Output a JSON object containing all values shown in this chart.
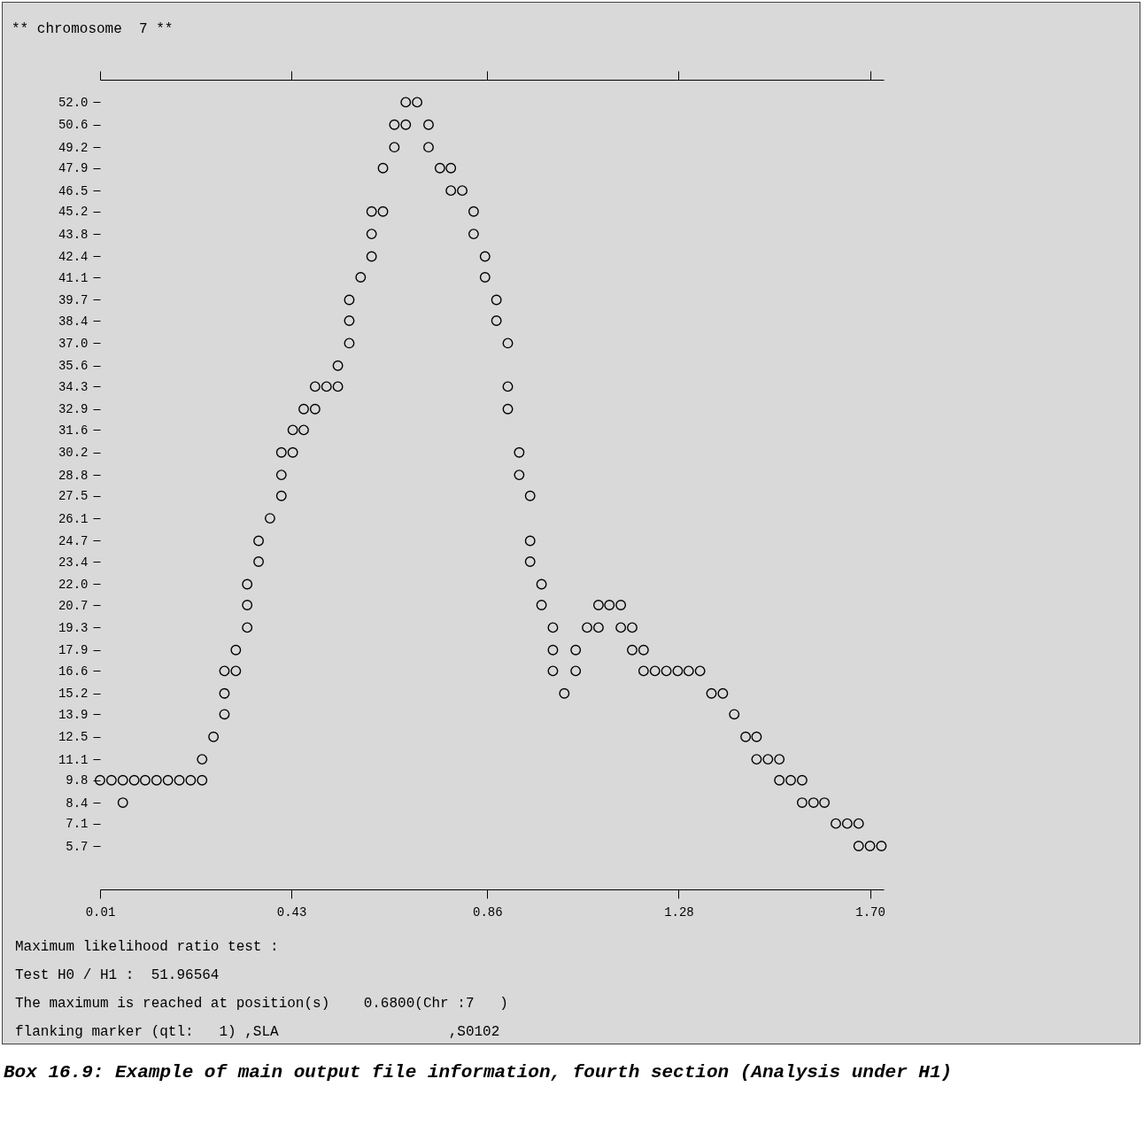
{
  "chart_data": {
    "type": "scatter",
    "title": "** chromosome  7 **",
    "x": [
      0.681,
      0.706,
      0.656,
      0.681,
      0.731,
      0.656,
      0.731,
      0.631,
      0.756,
      0.78,
      0.78,
      0.805,
      0.606,
      0.631,
      0.83,
      0.606,
      0.83,
      0.606,
      0.855,
      0.582,
      0.855,
      0.557,
      0.88,
      0.557,
      0.88,
      0.557,
      0.905,
      0.532,
      0.482,
      0.507,
      0.532,
      0.905,
      0.457,
      0.482,
      0.905,
      0.433,
      0.457,
      0.408,
      0.433,
      0.93,
      0.408,
      0.93,
      0.408,
      0.954,
      0.383,
      0.358,
      0.954,
      0.358,
      0.954,
      0.333,
      0.979,
      0.333,
      0.979,
      1.104,
      1.128,
      1.153,
      0.333,
      1.004,
      1.079,
      1.104,
      1.153,
      1.178,
      0.308,
      1.004,
      1.054,
      1.178,
      1.203,
      0.283,
      0.308,
      1.004,
      1.054,
      1.203,
      1.228,
      1.253,
      1.278,
      1.302,
      1.327,
      0.283,
      1.029,
      1.352,
      1.377,
      0.283,
      1.402,
      0.259,
      1.427,
      1.451,
      0.234,
      1.451,
      1.476,
      1.501,
      0.01,
      0.035,
      0.06,
      0.085,
      0.109,
      0.134,
      0.159,
      0.184,
      0.209,
      0.234,
      1.501,
      1.526,
      1.551,
      0.06,
      1.551,
      1.576,
      1.6,
      1.625,
      1.65,
      1.675,
      1.675,
      1.7,
      1.725
    ],
    "values": [
      52.0,
      52.0,
      50.6,
      50.6,
      50.6,
      49.2,
      49.2,
      47.9,
      47.9,
      47.9,
      46.5,
      46.5,
      45.2,
      45.2,
      45.2,
      43.8,
      43.8,
      42.4,
      42.4,
      41.1,
      41.1,
      39.7,
      39.7,
      38.4,
      38.4,
      37.0,
      37.0,
      35.6,
      34.3,
      34.3,
      34.3,
      34.3,
      32.9,
      32.9,
      32.9,
      31.6,
      31.6,
      30.2,
      30.2,
      30.2,
      28.8,
      28.8,
      27.5,
      27.5,
      26.1,
      24.7,
      24.7,
      23.4,
      23.4,
      22.0,
      22.0,
      20.7,
      20.7,
      20.7,
      20.7,
      20.7,
      19.3,
      19.3,
      19.3,
      19.3,
      19.3,
      19.3,
      17.9,
      17.9,
      17.9,
      17.9,
      17.9,
      16.6,
      16.6,
      16.6,
      16.6,
      16.6,
      16.6,
      16.6,
      16.6,
      16.6,
      16.6,
      15.2,
      15.2,
      15.2,
      15.2,
      13.9,
      13.9,
      12.5,
      12.5,
      12.5,
      11.1,
      11.1,
      11.1,
      11.1,
      9.8,
      9.8,
      9.8,
      9.8,
      9.8,
      9.8,
      9.8,
      9.8,
      9.8,
      9.8,
      9.8,
      9.8,
      9.8,
      8.4,
      8.4,
      8.4,
      8.4,
      7.1,
      7.1,
      7.1,
      5.7,
      5.7,
      5.7
    ],
    "color": "#000000",
    "marker": "circle",
    "xlim": [
      0.01,
      1.73
    ],
    "xticks": [
      0.01,
      0.43,
      0.86,
      1.28,
      {
        "value": 1.7,
        "label": "1.70"
      }
    ],
    "ylim": [
      3.0,
      53.4
    ],
    "yticks": [
      {
        "value": 52.0,
        "label": "52.0"
      },
      50.6,
      49.2,
      47.9,
      46.5,
      45.2,
      43.8,
      42.4,
      41.1,
      39.7,
      38.4,
      {
        "value": 37.0,
        "label": "37.0"
      },
      35.6,
      34.3,
      32.9,
      31.6,
      30.2,
      28.8,
      27.5,
      26.1,
      24.7,
      23.4,
      {
        "value": 22.0,
        "label": "22.0"
      },
      20.7,
      19.3,
      17.9,
      16.6,
      15.2,
      13.9,
      12.5,
      11.1,
      9.8,
      8.4,
      7.1,
      5.7
    ],
    "annotations": [
      "Maximum likelihood ratio test :",
      "Test H0 / H1 :  51.96564",
      "The maximum is reached at position(s)    0.6800(Chr :7   )",
      "flanking marker (qtl:   1) ,SLA                    ,S0102",
      "Box 16.9: Example of main output file information, fourth section (Analysis under H1)"
    ]
  }
}
